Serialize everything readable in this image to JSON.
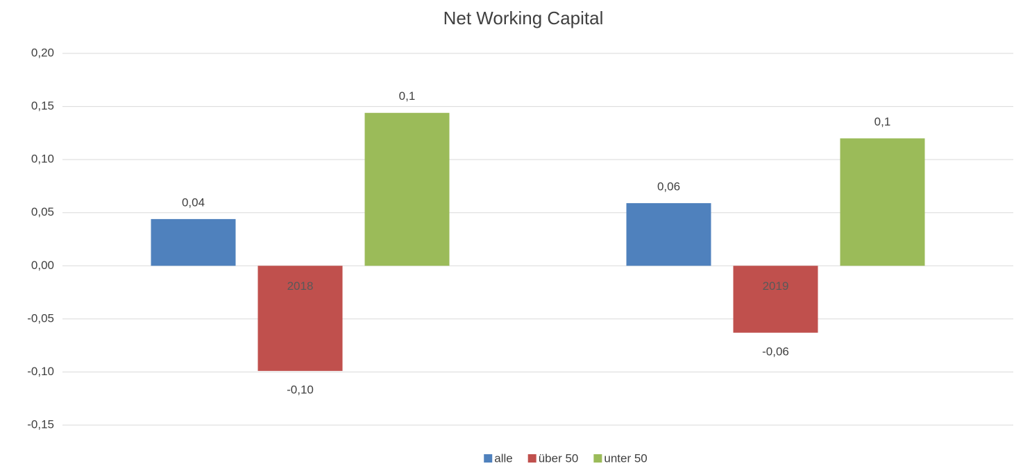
{
  "chart_data": {
    "type": "bar",
    "title": "Net Working Capital",
    "categories": [
      "2018",
      "2019"
    ],
    "series": [
      {
        "name": "alle",
        "color": "#4f81bd",
        "values": [
          0.044,
          0.059
        ],
        "value_labels": [
          "0,04",
          "0,06"
        ]
      },
      {
        "name": "über 50",
        "color": "#c0504d",
        "values": [
          -0.099,
          -0.063
        ],
        "value_labels": [
          "-0,10",
          "-0,06"
        ]
      },
      {
        "name": "unter 50",
        "color": "#9bbb59",
        "values": [
          0.144,
          0.12
        ],
        "value_labels": [
          "0,1",
          "0,1"
        ]
      }
    ],
    "ylim": [
      -0.15,
      0.2
    ],
    "yticks": [
      {
        "value": -0.15,
        "label": "-0,15"
      },
      {
        "value": -0.1,
        "label": "-0,10"
      },
      {
        "value": -0.05,
        "label": "-0,05"
      },
      {
        "value": 0,
        "label": "0,00"
      },
      {
        "value": 0.05,
        "label": "0,05"
      },
      {
        "value": 0.1,
        "label": "0,10"
      },
      {
        "value": 0.15,
        "label": "0,15"
      },
      {
        "value": 0.2,
        "label": "0,20"
      }
    ],
    "grid": true,
    "legend": "bottom"
  }
}
